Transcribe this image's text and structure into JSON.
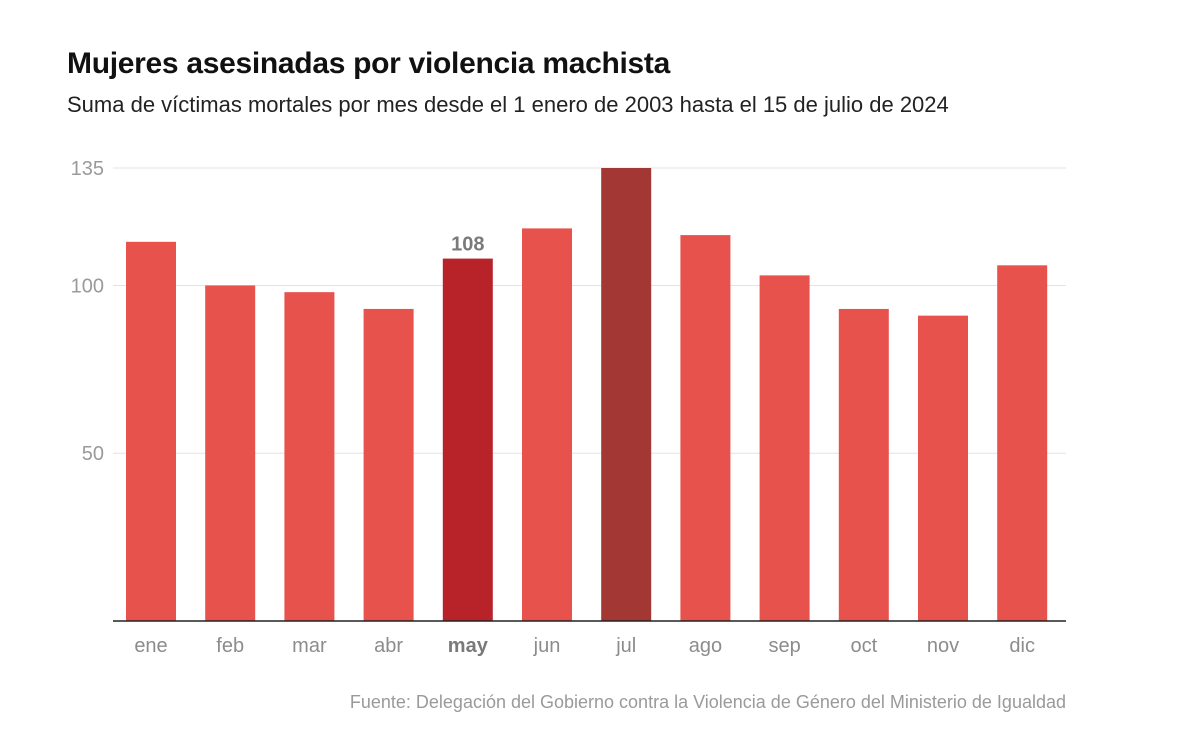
{
  "header": {
    "title": "Mujeres asesinadas por violencia machista",
    "subtitle": "Suma de víctimas mortales por mes desde el 1 enero de 2003 hasta el 15 de julio de 2024"
  },
  "chart_data": {
    "type": "bar",
    "categories": [
      "ene",
      "feb",
      "mar",
      "abr",
      "may",
      "jun",
      "jul",
      "ago",
      "sep",
      "oct",
      "nov",
      "dic"
    ],
    "values": [
      113,
      100,
      98,
      93,
      108,
      117,
      135,
      115,
      103,
      93,
      91,
      106
    ],
    "ylim": [
      0,
      135
    ],
    "yticks": [
      50,
      100,
      135
    ],
    "grid": true,
    "highlight": [
      {
        "index": 4,
        "color": "#b8232a",
        "label": "108"
      },
      {
        "index": 6,
        "color": "#a33734"
      }
    ],
    "bar_color": "#e8524c"
  },
  "footer": {
    "source": "Fuente: Delegación del Gobierno contra la Violencia de Género del Ministerio de Igualdad"
  }
}
